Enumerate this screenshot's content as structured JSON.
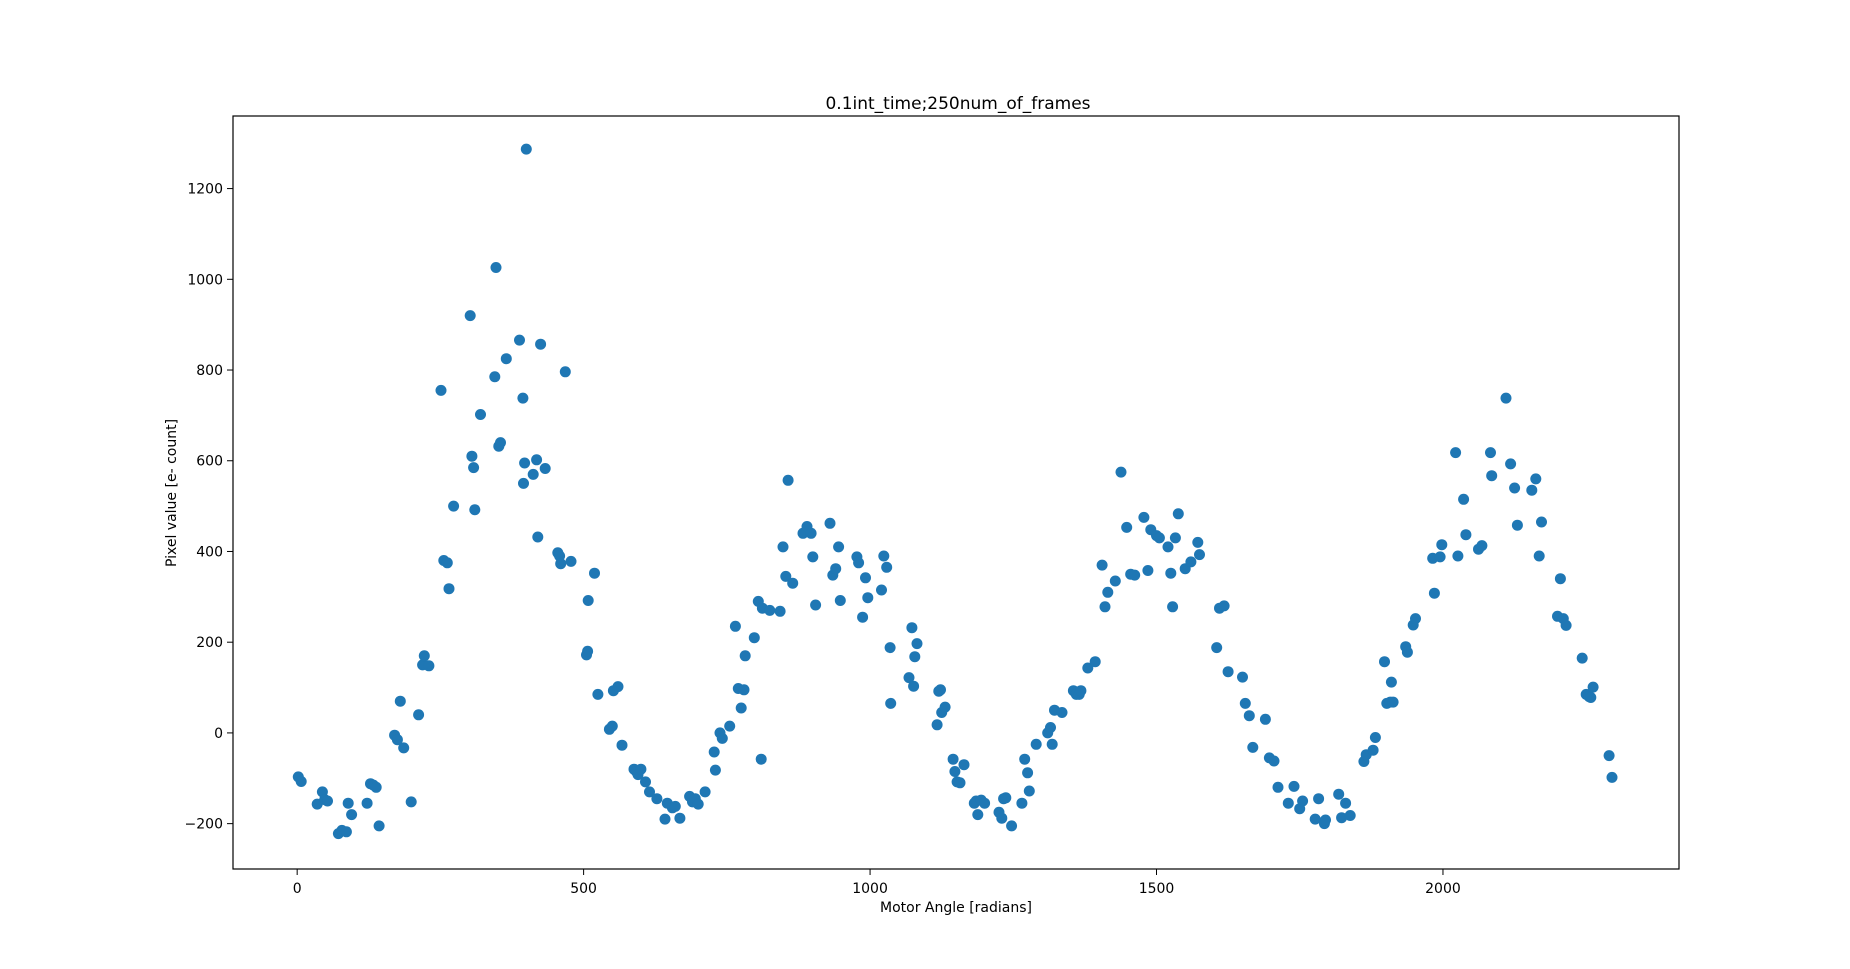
{
  "chart_data": {
    "type": "scatter",
    "title": "0.1int_time;250num_of_frames",
    "xlabel": "Motor Angle [radians]",
    "ylabel": "Pixel value [e- count]",
    "xlim": [
      -112,
      2412
    ],
    "ylim": [
      -300,
      1360
    ],
    "x_ticks": [
      0,
      500,
      1000,
      1500,
      2000
    ],
    "y_ticks": [
      -200,
      0,
      200,
      400,
      600,
      800,
      1000,
      1200
    ],
    "grid": false,
    "legend": "none",
    "series": [
      {
        "color": "#1f77b4",
        "points": [
          [
            2,
            -97
          ],
          [
            7,
            -107
          ],
          [
            35,
            -157
          ],
          [
            44,
            -130
          ],
          [
            48,
            -147
          ],
          [
            53,
            -150
          ],
          [
            72,
            -222
          ],
          [
            78,
            -215
          ],
          [
            86,
            -218
          ],
          [
            89,
            -155
          ],
          [
            95,
            -180
          ],
          [
            122,
            -155
          ],
          [
            128,
            -112
          ],
          [
            133,
            -115
          ],
          [
            138,
            -120
          ],
          [
            143,
            -205
          ],
          [
            170,
            -5
          ],
          [
            175,
            -15
          ],
          [
            180,
            70
          ],
          [
            186,
            -33
          ],
          [
            199,
            -152
          ],
          [
            212,
            40
          ],
          [
            219,
            150
          ],
          [
            222,
            170
          ],
          [
            230,
            148
          ],
          [
            251,
            755
          ],
          [
            256,
            380
          ],
          [
            262,
            375
          ],
          [
            265,
            318
          ],
          [
            273,
            500
          ],
          [
            302,
            920
          ],
          [
            305,
            610
          ],
          [
            308,
            585
          ],
          [
            310,
            492
          ],
          [
            320,
            702
          ],
          [
            345,
            785
          ],
          [
            347,
            1026
          ],
          [
            352,
            632
          ],
          [
            355,
            640
          ],
          [
            365,
            825
          ],
          [
            388,
            866
          ],
          [
            394,
            738
          ],
          [
            395,
            550
          ],
          [
            397,
            595
          ],
          [
            400,
            1287
          ],
          [
            412,
            570
          ],
          [
            418,
            602
          ],
          [
            420,
            432
          ],
          [
            425,
            857
          ],
          [
            433,
            583
          ],
          [
            455,
            397
          ],
          [
            458,
            390
          ],
          [
            460,
            373
          ],
          [
            468,
            796
          ],
          [
            478,
            378
          ],
          [
            505,
            172
          ],
          [
            507,
            180
          ],
          [
            508,
            292
          ],
          [
            519,
            352
          ],
          [
            525,
            85
          ],
          [
            545,
            8
          ],
          [
            550,
            15
          ],
          [
            552,
            93
          ],
          [
            560,
            102
          ],
          [
            567,
            -27
          ],
          [
            588,
            -80
          ],
          [
            592,
            -85
          ],
          [
            595,
            -92
          ],
          [
            600,
            -80
          ],
          [
            608,
            -108
          ],
          [
            615,
            -130
          ],
          [
            628,
            -145
          ],
          [
            642,
            -190
          ],
          [
            646,
            -155
          ],
          [
            655,
            -165
          ],
          [
            660,
            -162
          ],
          [
            668,
            -188
          ],
          [
            685,
            -140
          ],
          [
            690,
            -152
          ],
          [
            695,
            -145
          ],
          [
            700,
            -157
          ],
          [
            712,
            -130
          ],
          [
            728,
            -42
          ],
          [
            730,
            -82
          ],
          [
            738,
            0
          ],
          [
            742,
            -12
          ],
          [
            755,
            15
          ],
          [
            765,
            235
          ],
          [
            770,
            98
          ],
          [
            775,
            55
          ],
          [
            780,
            95
          ],
          [
            782,
            170
          ],
          [
            798,
            210
          ],
          [
            805,
            290
          ],
          [
            810,
            -58
          ],
          [
            812,
            275
          ],
          [
            825,
            270
          ],
          [
            843,
            268
          ],
          [
            848,
            410
          ],
          [
            853,
            345
          ],
          [
            857,
            557
          ],
          [
            865,
            330
          ],
          [
            883,
            440
          ],
          [
            890,
            455
          ],
          [
            897,
            440
          ],
          [
            900,
            388
          ],
          [
            905,
            282
          ],
          [
            930,
            462
          ],
          [
            935,
            348
          ],
          [
            940,
            362
          ],
          [
            945,
            410
          ],
          [
            948,
            292
          ],
          [
            977,
            388
          ],
          [
            980,
            375
          ],
          [
            987,
            255
          ],
          [
            992,
            342
          ],
          [
            996,
            298
          ],
          [
            1020,
            315
          ],
          [
            1024,
            390
          ],
          [
            1029,
            365
          ],
          [
            1035,
            188
          ],
          [
            1036,
            65
          ],
          [
            1068,
            122
          ],
          [
            1073,
            232
          ],
          [
            1076,
            103
          ],
          [
            1078,
            168
          ],
          [
            1082,
            197
          ],
          [
            1117,
            18
          ],
          [
            1120,
            92
          ],
          [
            1123,
            95
          ],
          [
            1125,
            45
          ],
          [
            1131,
            57
          ],
          [
            1145,
            -58
          ],
          [
            1148,
            -85
          ],
          [
            1152,
            -108
          ],
          [
            1157,
            -110
          ],
          [
            1164,
            -70
          ],
          [
            1182,
            -155
          ],
          [
            1185,
            -150
          ],
          [
            1188,
            -180
          ],
          [
            1194,
            -148
          ],
          [
            1200,
            -155
          ],
          [
            1225,
            -175
          ],
          [
            1230,
            -188
          ],
          [
            1233,
            -145
          ],
          [
            1237,
            -143
          ],
          [
            1247,
            -205
          ],
          [
            1265,
            -155
          ],
          [
            1270,
            -58
          ],
          [
            1275,
            -88
          ],
          [
            1278,
            -128
          ],
          [
            1290,
            -25
          ],
          [
            1310,
            0
          ],
          [
            1315,
            12
          ],
          [
            1318,
            -25
          ],
          [
            1322,
            50
          ],
          [
            1335,
            45
          ],
          [
            1355,
            93
          ],
          [
            1360,
            85
          ],
          [
            1365,
            85
          ],
          [
            1368,
            93
          ],
          [
            1380,
            143
          ],
          [
            1393,
            157
          ],
          [
            1405,
            370
          ],
          [
            1410,
            278
          ],
          [
            1415,
            310
          ],
          [
            1428,
            335
          ],
          [
            1438,
            575
          ],
          [
            1448,
            453
          ],
          [
            1455,
            350
          ],
          [
            1462,
            348
          ],
          [
            1478,
            475
          ],
          [
            1485,
            358
          ],
          [
            1490,
            448
          ],
          [
            1500,
            435
          ],
          [
            1505,
            430
          ],
          [
            1520,
            410
          ],
          [
            1525,
            352
          ],
          [
            1528,
            278
          ],
          [
            1533,
            430
          ],
          [
            1538,
            483
          ],
          [
            1550,
            362
          ],
          [
            1560,
            377
          ],
          [
            1572,
            420
          ],
          [
            1575,
            393
          ],
          [
            1605,
            188
          ],
          [
            1610,
            275
          ],
          [
            1618,
            280
          ],
          [
            1625,
            135
          ],
          [
            1650,
            123
          ],
          [
            1655,
            65
          ],
          [
            1662,
            38
          ],
          [
            1668,
            -32
          ],
          [
            1690,
            30
          ],
          [
            1697,
            -55
          ],
          [
            1705,
            -62
          ],
          [
            1712,
            -120
          ],
          [
            1730,
            -155
          ],
          [
            1740,
            -118
          ],
          [
            1750,
            -167
          ],
          [
            1755,
            -150
          ],
          [
            1777,
            -190
          ],
          [
            1783,
            -145
          ],
          [
            1793,
            -200
          ],
          [
            1795,
            -192
          ],
          [
            1818,
            -135
          ],
          [
            1823,
            -187
          ],
          [
            1830,
            -155
          ],
          [
            1838,
            -182
          ],
          [
            1862,
            -63
          ],
          [
            1866,
            -48
          ],
          [
            1878,
            -38
          ],
          [
            1882,
            -10
          ],
          [
            1898,
            157
          ],
          [
            1902,
            65
          ],
          [
            1908,
            68
          ],
          [
            1910,
            112
          ],
          [
            1913,
            68
          ],
          [
            1935,
            190
          ],
          [
            1938,
            178
          ],
          [
            1948,
            238
          ],
          [
            1952,
            252
          ],
          [
            1982,
            385
          ],
          [
            1985,
            308
          ],
          [
            1995,
            388
          ],
          [
            1998,
            415
          ],
          [
            2022,
            618
          ],
          [
            2026,
            390
          ],
          [
            2036,
            515
          ],
          [
            2040,
            437
          ],
          [
            2062,
            405
          ],
          [
            2068,
            413
          ],
          [
            2083,
            618
          ],
          [
            2085,
            567
          ],
          [
            2110,
            738
          ],
          [
            2118,
            593
          ],
          [
            2125,
            540
          ],
          [
            2130,
            458
          ],
          [
            2155,
            535
          ],
          [
            2162,
            560
          ],
          [
            2168,
            390
          ],
          [
            2172,
            465
          ],
          [
            2200,
            257
          ],
          [
            2205,
            340
          ],
          [
            2210,
            252
          ],
          [
            2215,
            237
          ],
          [
            2243,
            165
          ],
          [
            2250,
            85
          ],
          [
            2255,
            80
          ],
          [
            2258,
            78
          ],
          [
            2262,
            101
          ],
          [
            2290,
            -50
          ],
          [
            2295,
            -98
          ]
        ]
      }
    ]
  }
}
